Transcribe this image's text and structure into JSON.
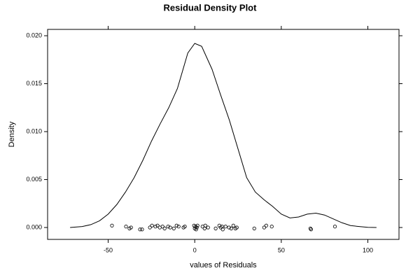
{
  "chart_data": {
    "type": "line",
    "title": "Residual Density Plot",
    "xlabel": "values of Residuals",
    "ylabel": "Density",
    "color": "#000000",
    "xlim": [
      -85,
      118
    ],
    "ylim": [
      -0.00124,
      0.02066
    ],
    "xticks": [
      -50,
      0,
      50,
      100
    ],
    "yticks": [
      {
        "value": 0,
        "label": "0.000"
      },
      {
        "value": 0.005,
        "label": "0.005"
      },
      {
        "value": 0.01,
        "label": "0.010"
      },
      {
        "value": 0.015,
        "label": "0.015"
      },
      {
        "value": 0.02,
        "label": "0.020"
      }
    ],
    "x": [
      -72,
      -65,
      -60,
      -55,
      -50,
      -45,
      -40,
      -35,
      -30,
      -25,
      -20,
      -15,
      -10,
      -4,
      0,
      4,
      10,
      15,
      20,
      25,
      30,
      35,
      40,
      45,
      50,
      55,
      60,
      65,
      70,
      75,
      80,
      85,
      90,
      95,
      100,
      105
    ],
    "values": [
      0,
      0.0001,
      0.0003,
      0.0007,
      0.0014,
      0.0024,
      0.0037,
      0.0052,
      0.007,
      0.009,
      0.0108,
      0.0125,
      0.0145,
      0.0182,
      0.0192,
      0.0189,
      0.0165,
      0.0138,
      0.0112,
      0.0082,
      0.0052,
      0.0037,
      0.0029,
      0.0022,
      0.0014,
      0.001,
      0.0011,
      0.0014,
      0.0015,
      0.0013,
      0.0009,
      0.0005,
      0.0002,
      0.0001,
      2e-05,
      0
    ],
    "rug": {
      "x": [
        -47.8,
        -39.7,
        -37.7,
        -36.8,
        -31.6,
        -30.4,
        -25.9,
        -24.7,
        -22.7,
        -21.5,
        -20.2,
        -18.6,
        -17.4,
        -15.4,
        -14.2,
        -12.1,
        -10.5,
        -9.3,
        -6.5,
        -5.7,
        -0.4,
        0,
        0.4,
        0.8,
        1.2,
        1.6,
        4.5,
        5.7,
        6.1,
        7.7,
        12.1,
        14.2,
        15,
        15.8,
        16.2,
        17.8,
        19.8,
        21.1,
        22.3,
        23.5,
        24.3,
        34.4,
        40.1,
        41.3,
        44.5,
        66.8,
        67.2,
        81
      ],
      "y": [
        0.0002,
        0.0001,
        -0.0001,
        0,
        -0.0002,
        -0.0002,
        0,
        0.0002,
        0.0001,
        0.0002,
        0,
        0.0001,
        -0.0001,
        0.0001,
        0,
        -0.0001,
        0.0002,
        0.0001,
        0,
        0.0001,
        0.0002,
        -0.0001,
        0.0001,
        -0.0002,
        0,
        0.0002,
        0.0001,
        -0.0001,
        0.0002,
        0,
        -0.0001,
        0.0002,
        0,
        0.0001,
        -0.0002,
        0.0001,
        0,
        -0.0001,
        0.0002,
        -0.0001,
        0,
        -0.0001,
        0,
        0.0002,
        0.0001,
        -0.0001,
        -0.0002,
        0.0001
      ]
    }
  }
}
